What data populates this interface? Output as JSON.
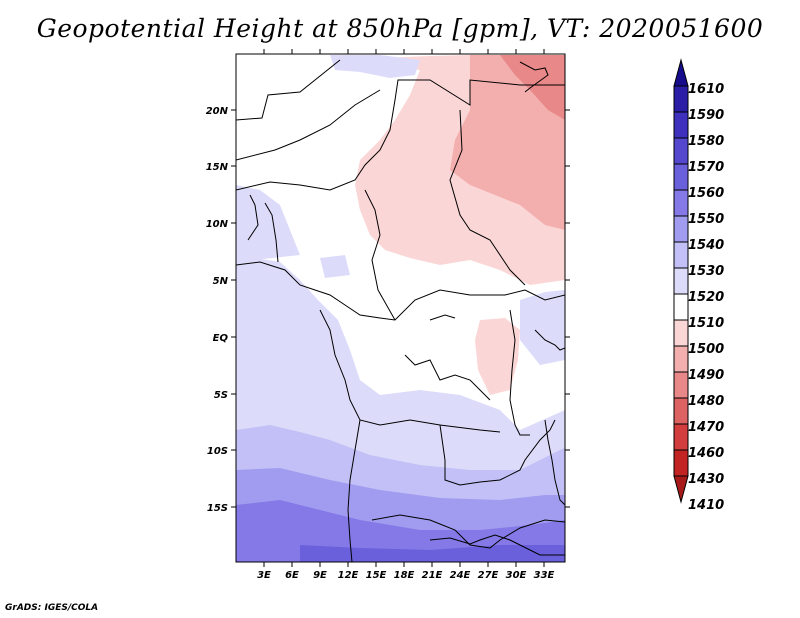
{
  "title": "Geopotential Height at 850hPa [gpm], VT: 2020051600",
  "credit": "GrADS: IGES/COLA",
  "map": {
    "lat_labels": [
      "20N",
      "15N",
      "10N",
      "5N",
      "EQ",
      "5S",
      "10S",
      "15S"
    ],
    "lon_labels": [
      "3E",
      "6E",
      "9E",
      "12E",
      "15E",
      "18E",
      "21E",
      "24E",
      "27E",
      "30E",
      "33E"
    ]
  },
  "colorbar": {
    "levels": [
      "1610",
      "1590",
      "1580",
      "1570",
      "1560",
      "1550",
      "1540",
      "1530",
      "1520",
      "1510",
      "1500",
      "1490",
      "1480",
      "1470",
      "1460",
      "1430",
      "1410"
    ],
    "colors": [
      "#160c8c",
      "#2a1ea6",
      "#3d31bd",
      "#5548cf",
      "#6b60db",
      "#8479e6",
      "#a29cf0",
      "#c2c0f6",
      "#dcdcfa",
      "#ffffff",
      "#fbd6d6",
      "#f3aeae",
      "#e88888",
      "#dd6262",
      "#d23d3d",
      "#c22424",
      "#a81a1a"
    ]
  }
}
